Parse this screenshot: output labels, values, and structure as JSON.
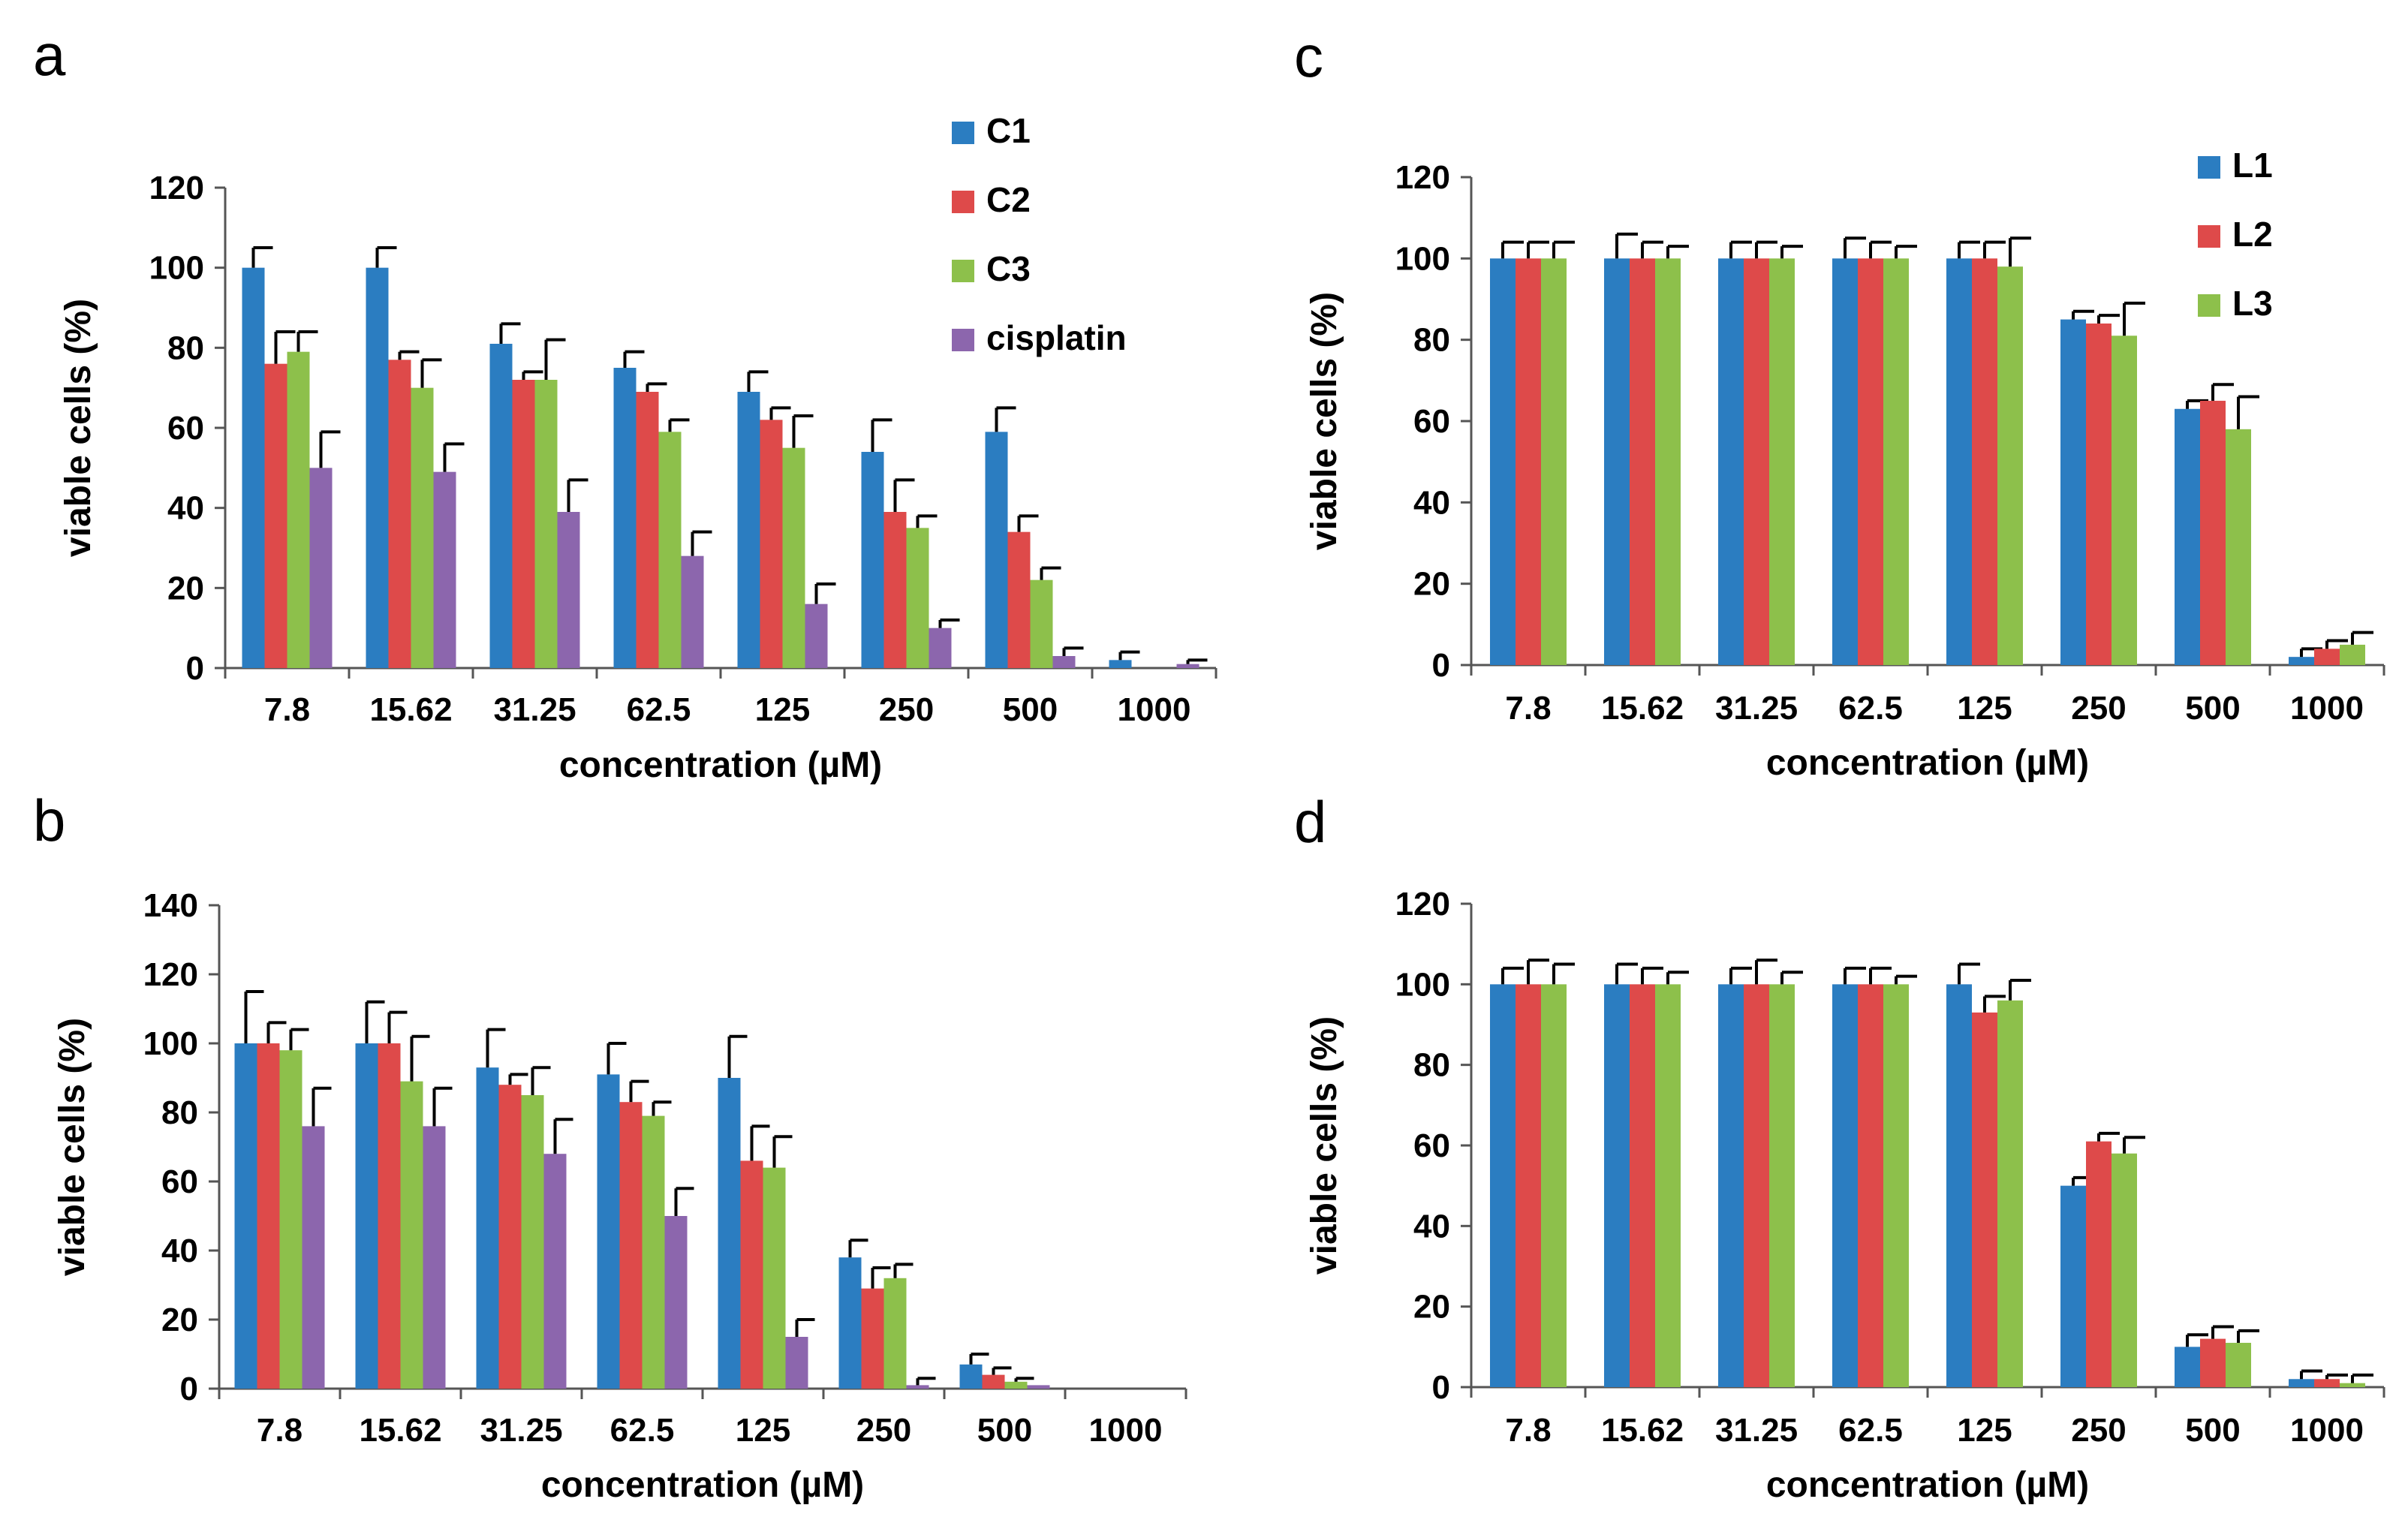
{
  "chart_data": [
    {
      "panel": "a",
      "type": "bar",
      "xlabel": "concentration (µM)",
      "ylabel": "viable cells (%)",
      "ylim": [
        0,
        120
      ],
      "yticks": [
        0,
        20,
        40,
        60,
        80,
        100,
        120
      ],
      "categories": [
        "7.8",
        "15.62",
        "31.25",
        "62.5",
        "125",
        "250",
        "500",
        "1000"
      ],
      "legend_position": "top-right",
      "series": [
        {
          "name": "C1",
          "color": "#2B7DC1",
          "values": [
            100,
            100,
            81,
            75,
            69,
            54,
            59,
            2
          ],
          "errors": [
            5,
            5,
            5,
            4,
            5,
            8,
            6,
            2
          ]
        },
        {
          "name": "C2",
          "color": "#DE4A4A",
          "values": [
            76,
            77,
            72,
            69,
            62,
            39,
            34,
            0
          ],
          "errors": [
            8,
            2,
            2,
            2,
            3,
            8,
            4,
            0
          ]
        },
        {
          "name": "C3",
          "color": "#8DC04B",
          "values": [
            79,
            70,
            72,
            59,
            55,
            35,
            22,
            0
          ],
          "errors": [
            5,
            7,
            10,
            3,
            8,
            3,
            3,
            0
          ]
        },
        {
          "name": "cisplatin",
          "color": "#8C66AD",
          "values": [
            50,
            49,
            39,
            28,
            16,
            10,
            3,
            1
          ],
          "errors": [
            9,
            7,
            8,
            6,
            5,
            2,
            2,
            1
          ]
        }
      ]
    },
    {
      "panel": "b",
      "type": "bar",
      "xlabel": "concentration (µM)",
      "ylabel": "viable cells (%)",
      "ylim": [
        0,
        140
      ],
      "yticks": [
        0,
        20,
        40,
        60,
        80,
        100,
        120,
        140
      ],
      "categories": [
        "7.8",
        "15.62",
        "31.25",
        "62.5",
        "125",
        "250",
        "500",
        "1000"
      ],
      "legend_position": "none",
      "series": [
        {
          "name": "C1",
          "color": "#2B7DC1",
          "values": [
            100,
            100,
            93,
            91,
            90,
            38,
            7,
            0
          ],
          "errors": [
            15,
            12,
            11,
            9,
            12,
            5,
            3,
            0
          ]
        },
        {
          "name": "C2",
          "color": "#DE4A4A",
          "values": [
            100,
            100,
            88,
            83,
            66,
            29,
            4,
            0
          ],
          "errors": [
            6,
            9,
            3,
            6,
            10,
            6,
            2,
            0
          ]
        },
        {
          "name": "C3",
          "color": "#8DC04B",
          "values": [
            98,
            89,
            85,
            79,
            64,
            32,
            2,
            0
          ],
          "errors": [
            6,
            13,
            8,
            4,
            9,
            4,
            1,
            0
          ]
        },
        {
          "name": "cisplatin",
          "color": "#8C66AD",
          "values": [
            76,
            76,
            68,
            50,
            15,
            1,
            1,
            0
          ],
          "errors": [
            11,
            11,
            10,
            8,
            5,
            2,
            0,
            0
          ]
        }
      ]
    },
    {
      "panel": "c",
      "type": "bar",
      "xlabel": "concentration (µM)",
      "ylabel": "viable cells (%)",
      "ylim": [
        0,
        120
      ],
      "yticks": [
        0,
        20,
        40,
        60,
        80,
        100,
        120
      ],
      "categories": [
        "7.8",
        "15.62",
        "31.25",
        "62.5",
        "125",
        "250",
        "500",
        "1000"
      ],
      "legend_position": "top-right",
      "series": [
        {
          "name": "L1",
          "color": "#2B7DC1",
          "values": [
            100,
            100,
            100,
            100,
            100,
            85,
            63,
            2
          ],
          "errors": [
            4,
            6,
            4,
            5,
            4,
            2,
            2,
            2
          ]
        },
        {
          "name": "L2",
          "color": "#DE4A4A",
          "values": [
            100,
            100,
            100,
            100,
            100,
            84,
            65,
            4
          ],
          "errors": [
            4,
            4,
            4,
            4,
            4,
            2,
            4,
            2
          ]
        },
        {
          "name": "L3",
          "color": "#8DC04B",
          "values": [
            100,
            100,
            100,
            100,
            98,
            81,
            58,
            5
          ],
          "errors": [
            4,
            3,
            3,
            3,
            7,
            8,
            8,
            3
          ]
        }
      ]
    },
    {
      "panel": "d",
      "type": "bar",
      "xlabel": "concentration (µM)",
      "ylabel": "viable cells (%)",
      "ylim": [
        0,
        120
      ],
      "yticks": [
        0,
        20,
        40,
        60,
        80,
        100,
        120
      ],
      "categories": [
        "7.8",
        "15.62",
        "31.25",
        "62.5",
        "125",
        "250",
        "500",
        "1000"
      ],
      "legend_position": "none",
      "series": [
        {
          "name": "L1",
          "color": "#2B7DC1",
          "values": [
            100,
            100,
            100,
            100,
            100,
            50,
            10,
            2
          ],
          "errors": [
            4,
            5,
            4,
            4,
            5,
            2,
            3,
            2
          ]
        },
        {
          "name": "L2",
          "color": "#DE4A4A",
          "values": [
            100,
            100,
            100,
            100,
            93,
            61,
            12,
            2
          ],
          "errors": [
            6,
            4,
            6,
            4,
            4,
            2,
            3,
            1
          ]
        },
        {
          "name": "L3",
          "color": "#8DC04B",
          "values": [
            100,
            100,
            100,
            100,
            96,
            58,
            11,
            1
          ],
          "errors": [
            5,
            3,
            3,
            2,
            5,
            4,
            3,
            2
          ]
        }
      ]
    }
  ]
}
